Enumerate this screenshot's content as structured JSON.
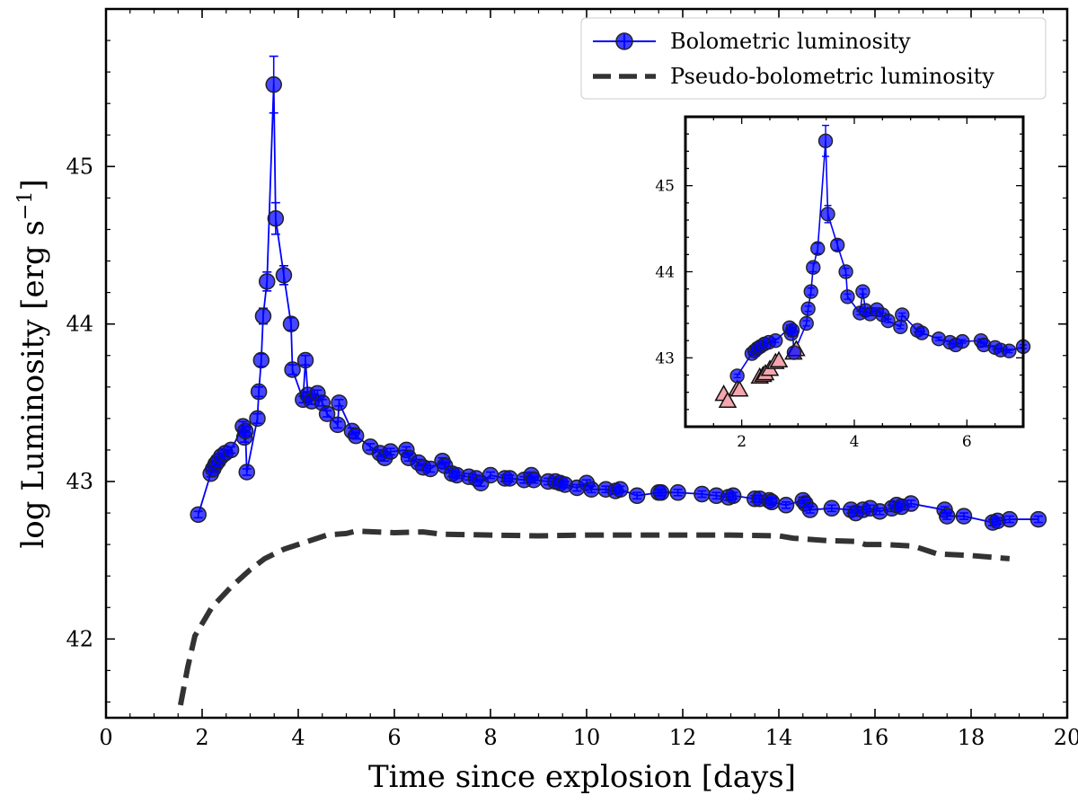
{
  "chart_data": {
    "type": "line",
    "xlabel": "Time since explosion [days]",
    "ylabel": "log Luminosity [erg s",
    "ylabel_sup": "−1",
    "ylabel_close": "]",
    "xlim": [
      0,
      20
    ],
    "ylim": [
      41.5,
      46.0
    ],
    "xticks": [
      0,
      2,
      4,
      6,
      8,
      10,
      12,
      14,
      16,
      18,
      20
    ],
    "yticks": [
      42,
      43,
      44,
      45
    ],
    "legend": {
      "position": "top-right",
      "entries": [
        "Bolometric luminosity",
        "Pseudo-bolometric luminosity"
      ]
    },
    "series": [
      {
        "name": "Bolometric luminosity",
        "style": "line-markers",
        "color": "#0000ff",
        "points": [
          [
            1.92,
            42.79,
            0.02
          ],
          [
            2.18,
            43.05,
            0.02
          ],
          [
            2.23,
            43.08,
            0.02
          ],
          [
            2.28,
            43.11,
            0.02
          ],
          [
            2.33,
            43.13,
            0.02
          ],
          [
            2.4,
            43.16,
            0.02
          ],
          [
            2.48,
            43.18,
            0.02
          ],
          [
            2.6,
            43.2,
            0.02
          ],
          [
            2.85,
            43.35,
            0.03
          ],
          [
            2.88,
            43.28,
            0.03
          ],
          [
            2.9,
            43.32,
            0.03
          ],
          [
            2.93,
            43.06,
            0.02
          ],
          [
            3.15,
            43.4,
            0.03
          ],
          [
            3.18,
            43.57,
            0.03
          ],
          [
            3.23,
            43.77,
            0.04
          ],
          [
            3.27,
            44.05,
            0.05
          ],
          [
            3.35,
            44.27,
            0.06
          ],
          [
            3.49,
            45.52,
            0.18
          ],
          [
            3.53,
            44.67,
            0.1
          ],
          [
            3.7,
            44.31,
            0.06
          ],
          [
            3.85,
            44.0,
            0.04
          ],
          [
            3.88,
            43.71,
            0.03
          ],
          [
            4.1,
            43.52,
            0.02
          ],
          [
            4.15,
            43.77,
            0.03
          ],
          [
            4.2,
            43.55,
            0.02
          ],
          [
            4.28,
            43.51,
            0.02
          ],
          [
            4.4,
            43.56,
            0.02
          ],
          [
            4.5,
            43.5,
            0.02
          ],
          [
            4.6,
            43.43,
            0.02
          ],
          [
            4.82,
            43.36,
            0.02
          ],
          [
            4.85,
            43.5,
            0.02
          ],
          [
            5.12,
            43.32,
            0.02
          ],
          [
            5.2,
            43.29,
            0.02
          ],
          [
            5.5,
            43.22,
            0.02
          ],
          [
            5.7,
            43.18,
            0.02
          ],
          [
            5.8,
            43.15,
            0.02
          ],
          [
            5.92,
            43.19,
            0.02
          ],
          [
            6.25,
            43.2,
            0.02
          ],
          [
            6.3,
            43.15,
            0.02
          ],
          [
            6.5,
            43.12,
            0.02
          ],
          [
            6.6,
            43.09,
            0.02
          ],
          [
            6.75,
            43.08,
            0.02
          ],
          [
            7.0,
            43.13,
            0.02
          ],
          [
            7.05,
            43.1,
            0.02
          ],
          [
            7.2,
            43.05,
            0.02
          ],
          [
            7.3,
            43.04,
            0.02
          ],
          [
            7.55,
            43.03,
            0.02
          ],
          [
            7.7,
            43.02,
            0.02
          ],
          [
            7.8,
            42.99,
            0.02
          ],
          [
            8.0,
            43.04,
            0.02
          ],
          [
            8.3,
            43.02,
            0.02
          ],
          [
            8.4,
            43.02,
            0.02
          ],
          [
            8.7,
            43.01,
            0.02
          ],
          [
            8.85,
            43.04,
            0.02
          ],
          [
            8.9,
            43.01,
            0.02
          ],
          [
            9.2,
            43.0,
            0.02
          ],
          [
            9.35,
            43.0,
            0.02
          ],
          [
            9.45,
            42.99,
            0.02
          ],
          [
            9.55,
            42.98,
            0.02
          ],
          [
            9.8,
            42.96,
            0.02
          ],
          [
            10.0,
            42.99,
            0.02
          ],
          [
            10.1,
            42.95,
            0.02
          ],
          [
            10.4,
            42.95,
            0.02
          ],
          [
            10.6,
            42.94,
            0.02
          ],
          [
            10.7,
            42.95,
            0.02
          ],
          [
            11.05,
            42.91,
            0.02
          ],
          [
            11.5,
            42.93,
            0.02
          ],
          [
            11.55,
            42.93,
            0.02
          ],
          [
            11.9,
            42.93,
            0.02
          ],
          [
            12.4,
            42.92,
            0.02
          ],
          [
            12.7,
            42.91,
            0.02
          ],
          [
            12.95,
            42.9,
            0.02
          ],
          [
            13.05,
            42.91,
            0.02
          ],
          [
            13.5,
            42.89,
            0.02
          ],
          [
            13.6,
            42.89,
            0.02
          ],
          [
            13.8,
            42.88,
            0.02
          ],
          [
            13.85,
            42.87,
            0.02
          ],
          [
            14.15,
            42.85,
            0.02
          ],
          [
            14.5,
            42.88,
            0.02
          ],
          [
            14.55,
            42.86,
            0.02
          ],
          [
            14.65,
            42.82,
            0.02
          ],
          [
            15.1,
            42.83,
            0.02
          ],
          [
            15.5,
            42.82,
            0.02
          ],
          [
            15.6,
            42.8,
            0.02
          ],
          [
            15.75,
            42.82,
            0.02
          ],
          [
            15.9,
            42.83,
            0.02
          ],
          [
            16.1,
            42.81,
            0.02
          ],
          [
            16.35,
            42.83,
            0.02
          ],
          [
            16.45,
            42.85,
            0.02
          ],
          [
            16.55,
            42.84,
            0.02
          ],
          [
            16.75,
            42.86,
            0.02
          ],
          [
            17.45,
            42.82,
            0.02
          ],
          [
            17.5,
            42.78,
            0.02
          ],
          [
            17.85,
            42.78,
            0.02
          ],
          [
            18.45,
            42.74,
            0.02
          ],
          [
            18.55,
            42.75,
            0.02
          ],
          [
            18.8,
            42.76,
            0.02
          ],
          [
            19.4,
            42.76,
            0.02
          ]
        ]
      },
      {
        "name": "Pseudo-bolometric luminosity",
        "style": "dashed",
        "color": "#333333",
        "points": [
          [
            1.55,
            41.58
          ],
          [
            1.7,
            41.82
          ],
          [
            1.85,
            42.02
          ],
          [
            2.2,
            42.2
          ],
          [
            2.6,
            42.33
          ],
          [
            3.0,
            42.44
          ],
          [
            3.3,
            42.51
          ],
          [
            3.7,
            42.57
          ],
          [
            4.0,
            42.6
          ],
          [
            4.3,
            42.63
          ],
          [
            4.6,
            42.66
          ],
          [
            5.0,
            42.67
          ],
          [
            5.2,
            42.685
          ],
          [
            6.0,
            42.675
          ],
          [
            6.6,
            42.68
          ],
          [
            7.0,
            42.665
          ],
          [
            8.0,
            42.66
          ],
          [
            9.0,
            42.655
          ],
          [
            10.0,
            42.66
          ],
          [
            11.0,
            42.66
          ],
          [
            12.0,
            42.66
          ],
          [
            13.0,
            42.66
          ],
          [
            14.0,
            42.655
          ],
          [
            14.3,
            42.64
          ],
          [
            15.0,
            42.625
          ],
          [
            15.6,
            42.62
          ],
          [
            15.8,
            42.6
          ],
          [
            16.2,
            42.6
          ],
          [
            16.8,
            42.59
          ],
          [
            17.1,
            42.56
          ],
          [
            17.3,
            42.54
          ],
          [
            18.0,
            42.53
          ],
          [
            18.8,
            42.51
          ]
        ]
      }
    ],
    "inset": {
      "xlim": [
        1.0,
        7.0
      ],
      "ylim": [
        42.2,
        45.8
      ],
      "xticks": [
        2,
        4,
        6
      ],
      "yticks": [
        43,
        44,
        45
      ],
      "triangle_series": {
        "name": "triangles",
        "color": "#f4a5ad",
        "points": [
          [
            1.68,
            42.58
          ],
          [
            1.75,
            42.5
          ],
          [
            1.92,
            42.64
          ],
          [
            1.96,
            42.63
          ],
          [
            2.32,
            42.78
          ],
          [
            2.38,
            42.8
          ],
          [
            2.42,
            42.82
          ],
          [
            2.5,
            42.87
          ],
          [
            2.6,
            42.95
          ],
          [
            2.66,
            42.97
          ],
          [
            2.92,
            43.06
          ],
          [
            2.97,
            43.1
          ]
        ]
      }
    }
  }
}
